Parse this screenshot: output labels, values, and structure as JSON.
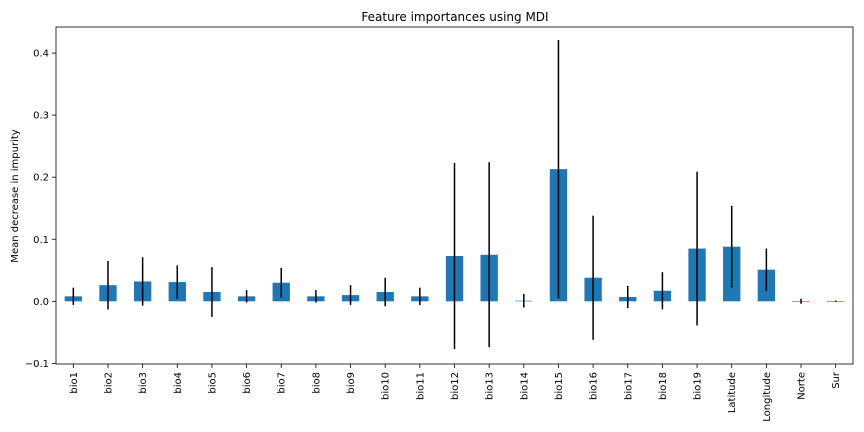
{
  "chart_data": {
    "type": "bar",
    "title": "Feature importances using MDI",
    "xlabel": "",
    "ylabel": "Mean decrease in impurity",
    "ylim": [
      -0.101,
      0.442
    ],
    "yticks": [
      -0.1,
      0.0,
      0.1,
      0.2,
      0.3,
      0.4
    ],
    "ytick_labels": [
      "−0.1",
      "0.0",
      "0.1",
      "0.2",
      "0.3",
      "0.4"
    ],
    "grid": false,
    "legend": "none",
    "bar_color": "#1f77b4",
    "error_color": "#000000",
    "categories": [
      "bio1",
      "bio2",
      "bio3",
      "bio4",
      "bio5",
      "bio6",
      "bio7",
      "bio8",
      "bio9",
      "bio10",
      "bio11",
      "bio12",
      "bio13",
      "bio14",
      "bio15",
      "bio16",
      "bio17",
      "bio18",
      "bio19",
      "Latitude",
      "Longitude",
      "Norte",
      "Sur"
    ],
    "values": [
      0.008,
      0.026,
      0.032,
      0.031,
      0.015,
      0.008,
      0.03,
      0.008,
      0.01,
      0.015,
      0.008,
      0.073,
      0.075,
      0.001,
      0.213,
      0.038,
      0.007,
      0.017,
      0.085,
      0.088,
      0.051,
      0.0002,
      0.0002
    ],
    "errors": [
      0.014,
      0.039,
      0.039,
      0.027,
      0.04,
      0.01,
      0.024,
      0.01,
      0.016,
      0.023,
      0.014,
      0.15,
      0.149,
      0.011,
      0.208,
      0.1,
      0.018,
      0.03,
      0.124,
      0.066,
      0.034,
      0.004,
      0.001
    ]
  }
}
